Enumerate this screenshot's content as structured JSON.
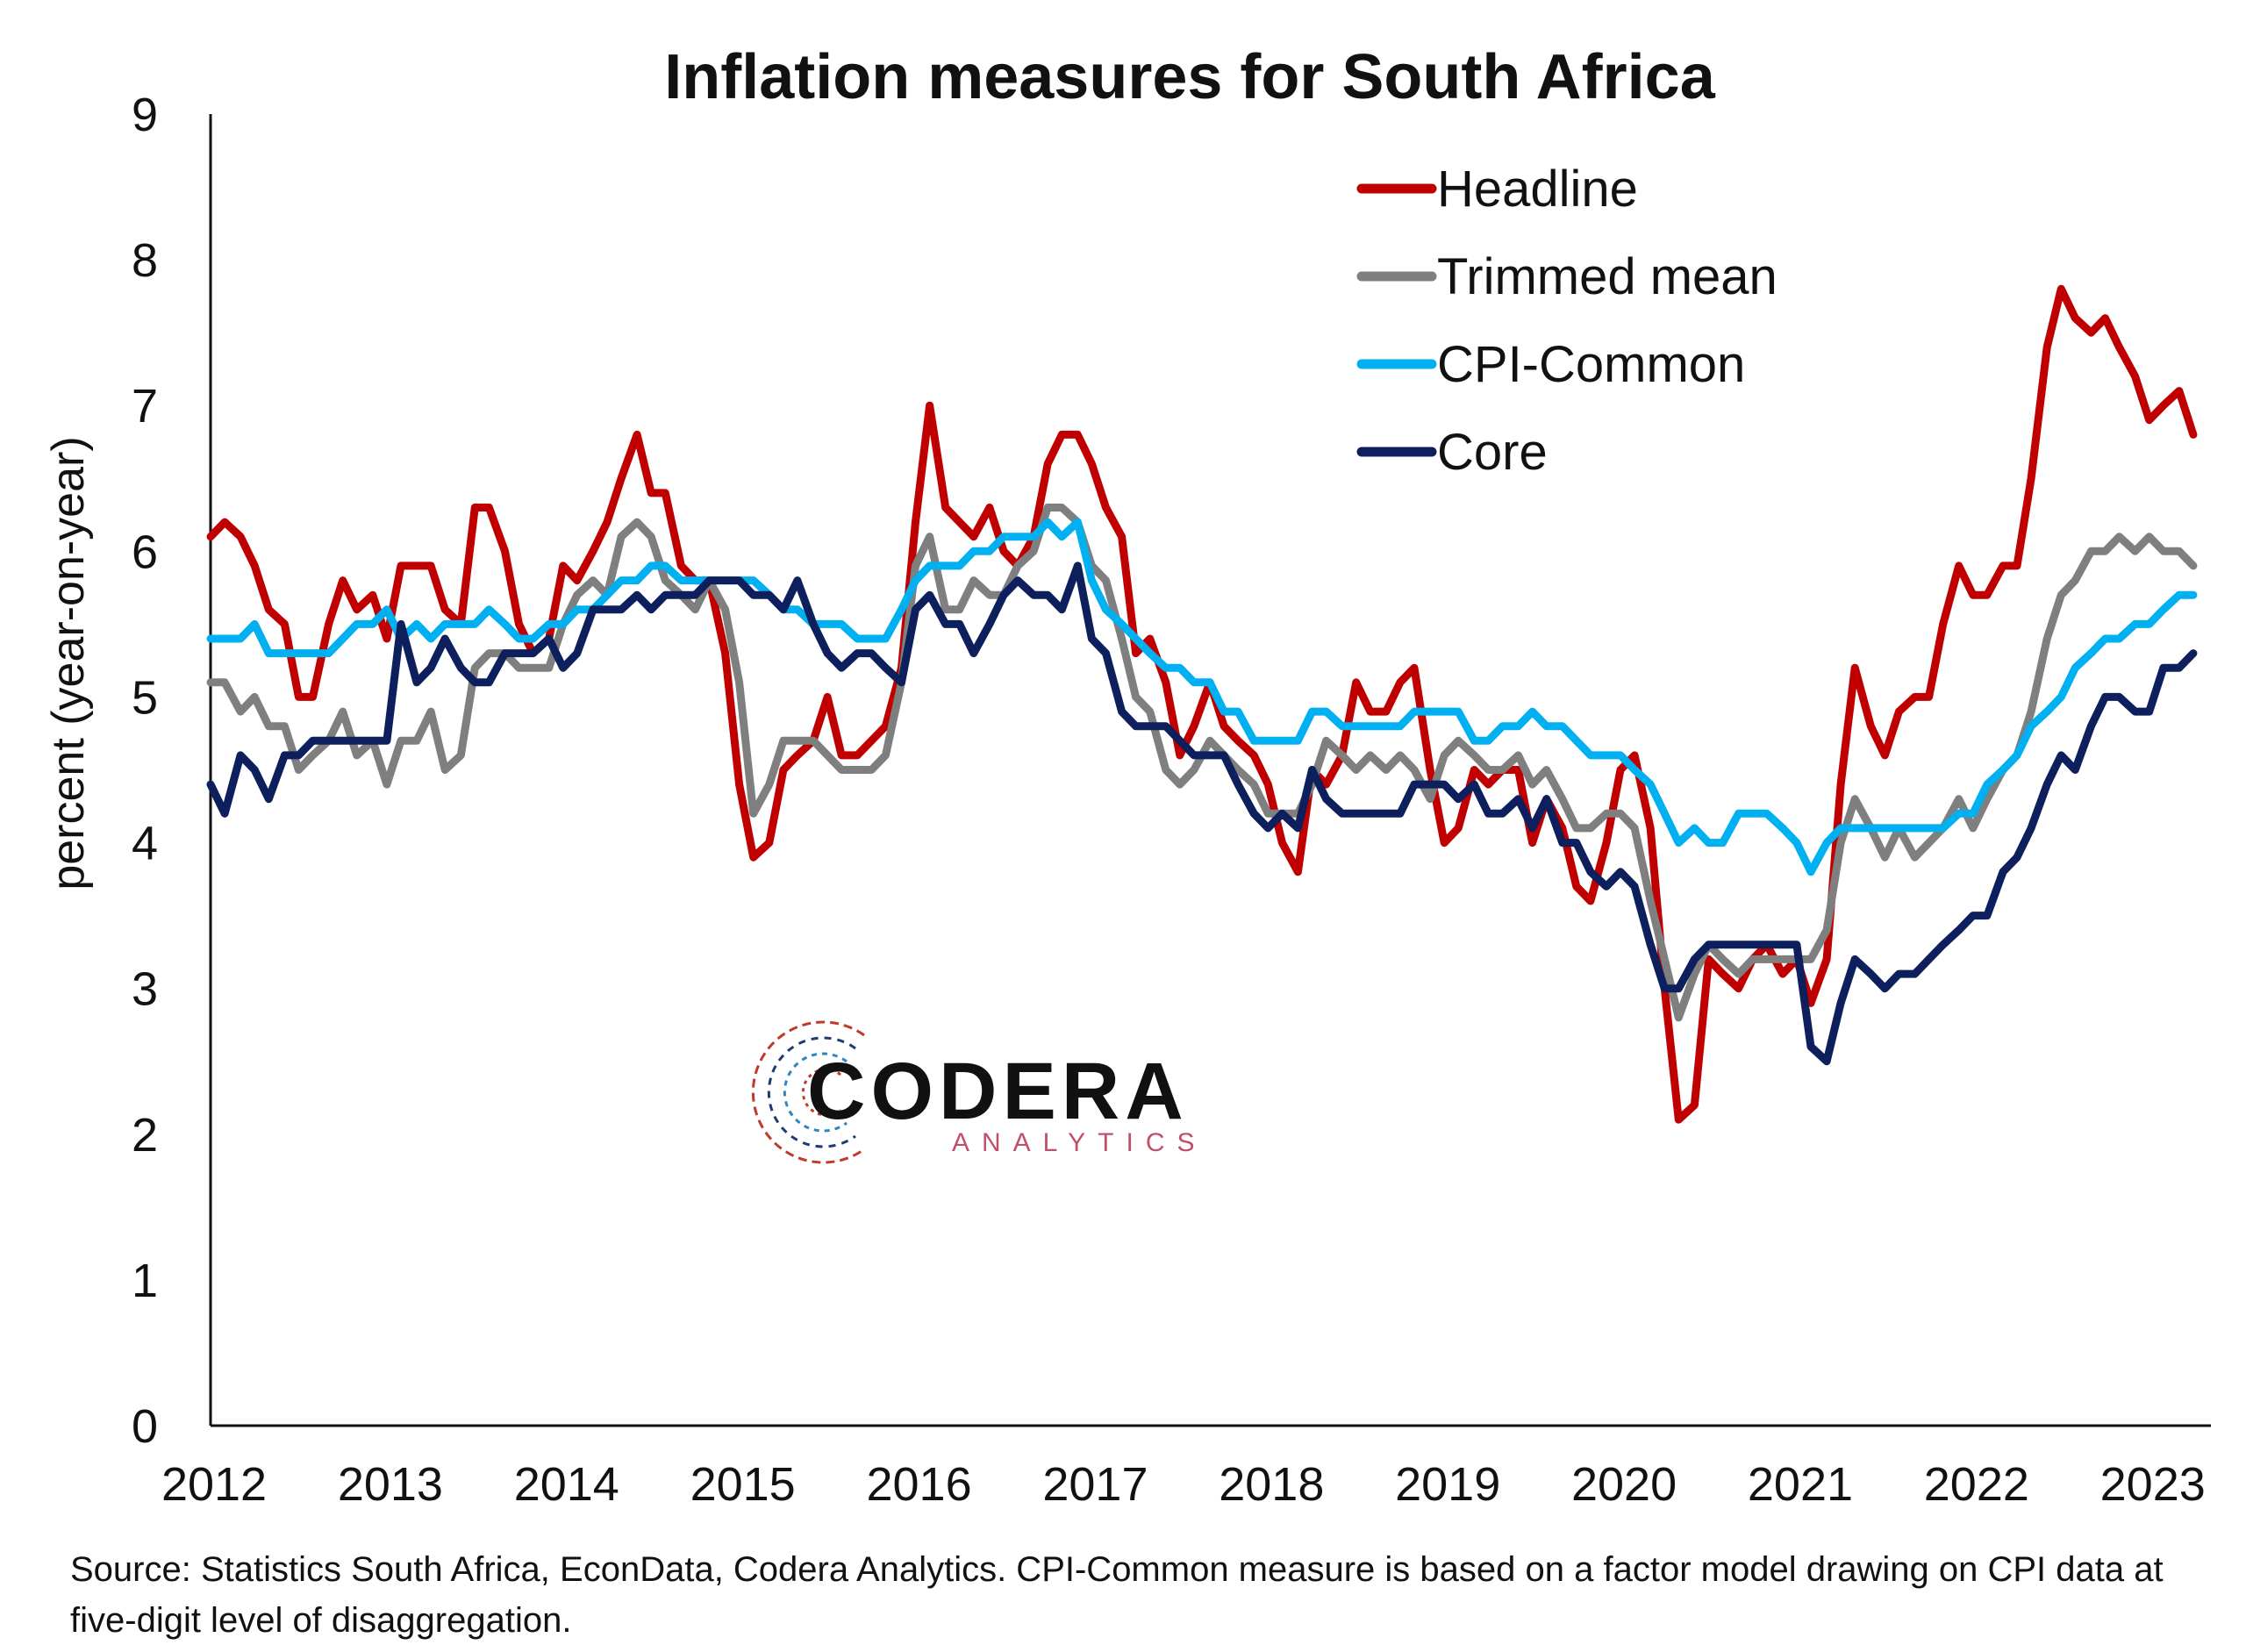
{
  "chart_data": {
    "type": "line",
    "title": "Inflation measures for South Africa",
    "ylabel": "percent (year-on-year)",
    "xlabel": "",
    "ylim": [
      0,
      9
    ],
    "xlim": [
      2012,
      2023.35
    ],
    "yticks": [
      "0",
      "1",
      "2",
      "3",
      "4",
      "5",
      "6",
      "7",
      "8",
      "9"
    ],
    "xticks": [
      "2012",
      "2013",
      "2014",
      "2015",
      "2016",
      "2017",
      "2018",
      "2019",
      "2020",
      "2021",
      "2022",
      "2023"
    ],
    "grid": false,
    "legend_position": "top-right",
    "x": [
      2012.0,
      2012.08,
      2012.17,
      2012.25,
      2012.33,
      2012.42,
      2012.5,
      2012.58,
      2012.67,
      2012.75,
      2012.83,
      2012.92,
      2013.0,
      2013.08,
      2013.17,
      2013.25,
      2013.33,
      2013.42,
      2013.5,
      2013.58,
      2013.67,
      2013.75,
      2013.83,
      2013.92,
      2014.0,
      2014.08,
      2014.17,
      2014.25,
      2014.33,
      2014.42,
      2014.5,
      2014.58,
      2014.67,
      2014.75,
      2014.83,
      2014.92,
      2015.0,
      2015.08,
      2015.17,
      2015.25,
      2015.33,
      2015.42,
      2015.5,
      2015.58,
      2015.67,
      2015.75,
      2015.83,
      2015.92,
      2016.0,
      2016.08,
      2016.17,
      2016.25,
      2016.33,
      2016.42,
      2016.5,
      2016.58,
      2016.67,
      2016.75,
      2016.83,
      2016.92,
      2017.0,
      2017.08,
      2017.17,
      2017.25,
      2017.33,
      2017.42,
      2017.5,
      2017.58,
      2017.67,
      2017.75,
      2017.83,
      2017.92,
      2018.0,
      2018.08,
      2018.17,
      2018.25,
      2018.33,
      2018.42,
      2018.5,
      2018.58,
      2018.67,
      2018.75,
      2018.83,
      2018.92,
      2019.0,
      2019.08,
      2019.17,
      2019.25,
      2019.33,
      2019.42,
      2019.5,
      2019.58,
      2019.67,
      2019.75,
      2019.83,
      2019.92,
      2020.0,
      2020.08,
      2020.17,
      2020.25,
      2020.33,
      2020.42,
      2020.5,
      2020.58,
      2020.67,
      2020.75,
      2020.83,
      2020.92,
      2021.0,
      2021.08,
      2021.17,
      2021.25,
      2021.33,
      2021.42,
      2021.5,
      2021.58,
      2021.67,
      2021.75,
      2021.83,
      2021.92,
      2022.0,
      2022.08,
      2022.17,
      2022.25,
      2022.33,
      2022.42,
      2022.5,
      2022.58,
      2022.67,
      2022.75,
      2022.83,
      2022.92,
      2023.0,
      2023.08,
      2023.17,
      2023.25
    ],
    "series": [
      {
        "name": "Headline",
        "color": "#c00000",
        "values": [
          6.1,
          6.2,
          6.1,
          5.9,
          5.6,
          5.5,
          5.0,
          5.0,
          5.5,
          5.8,
          5.6,
          5.7,
          5.4,
          5.9,
          5.9,
          5.9,
          5.6,
          5.5,
          6.3,
          6.3,
          6.0,
          5.5,
          5.3,
          5.4,
          5.9,
          5.8,
          6.0,
          6.2,
          6.5,
          6.8,
          6.4,
          6.4,
          5.9,
          5.8,
          5.8,
          5.3,
          4.4,
          3.9,
          4.0,
          4.5,
          4.6,
          4.7,
          5.0,
          4.6,
          4.6,
          4.7,
          4.8,
          5.2,
          6.2,
          7.0,
          6.3,
          6.2,
          6.1,
          6.3,
          6.0,
          5.9,
          6.1,
          6.6,
          6.8,
          6.8,
          6.6,
          6.3,
          6.1,
          5.3,
          5.4,
          5.1,
          4.6,
          4.8,
          5.1,
          4.8,
          4.7,
          4.6,
          4.4,
          4.0,
          3.8,
          4.5,
          4.4,
          4.6,
          5.1,
          4.9,
          4.9,
          5.1,
          5.2,
          4.5,
          4.0,
          4.1,
          4.5,
          4.4,
          4.5,
          4.5,
          4.0,
          4.3,
          4.1,
          3.7,
          3.6,
          4.0,
          4.5,
          4.6,
          4.1,
          3.0,
          2.1,
          2.2,
          3.2,
          3.1,
          3.0,
          3.2,
          3.3,
          3.1,
          3.2,
          2.9,
          3.2,
          4.4,
          5.2,
          4.8,
          4.6,
          4.9,
          5.0,
          5.0,
          5.5,
          5.9,
          5.7,
          5.7,
          5.9,
          5.9,
          6.5,
          7.4,
          7.8,
          7.6,
          7.5,
          7.6,
          7.4,
          7.2,
          6.9,
          7.0,
          7.1,
          6.8
        ]
      },
      {
        "name": "Trimmed mean",
        "color": "#7f7f7f",
        "values": [
          5.1,
          5.1,
          4.9,
          5.0,
          4.8,
          4.8,
          4.5,
          4.6,
          4.7,
          4.9,
          4.6,
          4.7,
          4.4,
          4.7,
          4.7,
          4.9,
          4.5,
          4.6,
          5.2,
          5.3,
          5.3,
          5.2,
          5.2,
          5.2,
          5.5,
          5.7,
          5.8,
          5.7,
          6.1,
          6.2,
          6.1,
          5.8,
          5.7,
          5.6,
          5.8,
          5.6,
          5.1,
          4.2,
          4.4,
          4.7,
          4.7,
          4.7,
          4.6,
          4.5,
          4.5,
          4.5,
          4.6,
          5.1,
          5.9,
          6.1,
          5.6,
          5.6,
          5.8,
          5.7,
          5.7,
          5.9,
          6.0,
          6.3,
          6.3,
          6.2,
          5.9,
          5.8,
          5.4,
          5.0,
          4.9,
          4.5,
          4.4,
          4.5,
          4.7,
          4.6,
          4.5,
          4.4,
          4.2,
          4.2,
          4.2,
          4.4,
          4.7,
          4.6,
          4.5,
          4.6,
          4.5,
          4.6,
          4.5,
          4.3,
          4.6,
          4.7,
          4.6,
          4.5,
          4.5,
          4.6,
          4.4,
          4.5,
          4.3,
          4.1,
          4.1,
          4.2,
          4.2,
          4.1,
          3.6,
          3.2,
          2.8,
          3.1,
          3.3,
          3.2,
          3.1,
          3.2,
          3.2,
          3.2,
          3.2,
          3.2,
          3.4,
          4.0,
          4.3,
          4.1,
          3.9,
          4.1,
          3.9,
          4.0,
          4.1,
          4.3,
          4.1,
          4.3,
          4.5,
          4.6,
          4.9,
          5.4,
          5.7,
          5.8,
          6.0,
          6.0,
          6.1,
          6.0,
          6.1,
          6.0,
          6.0,
          5.9
        ]
      },
      {
        "name": "CPI-Common",
        "color": "#00b0f0",
        "values": [
          5.4,
          5.4,
          5.4,
          5.5,
          5.3,
          5.3,
          5.3,
          5.3,
          5.3,
          5.4,
          5.5,
          5.5,
          5.6,
          5.4,
          5.5,
          5.4,
          5.5,
          5.5,
          5.5,
          5.6,
          5.5,
          5.4,
          5.4,
          5.5,
          5.5,
          5.6,
          5.6,
          5.7,
          5.8,
          5.8,
          5.9,
          5.9,
          5.8,
          5.8,
          5.8,
          5.8,
          5.8,
          5.8,
          5.7,
          5.6,
          5.6,
          5.5,
          5.5,
          5.5,
          5.4,
          5.4,
          5.4,
          5.6,
          5.8,
          5.9,
          5.9,
          5.9,
          6.0,
          6.0,
          6.1,
          6.1,
          6.1,
          6.2,
          6.1,
          6.2,
          5.8,
          5.6,
          5.5,
          5.4,
          5.3,
          5.2,
          5.2,
          5.1,
          5.1,
          4.9,
          4.9,
          4.7,
          4.7,
          4.7,
          4.7,
          4.9,
          4.9,
          4.8,
          4.8,
          4.8,
          4.8,
          4.8,
          4.9,
          4.9,
          4.9,
          4.9,
          4.7,
          4.7,
          4.8,
          4.8,
          4.9,
          4.8,
          4.8,
          4.7,
          4.6,
          4.6,
          4.6,
          4.5,
          4.4,
          4.2,
          4.0,
          4.1,
          4.0,
          4.0,
          4.2,
          4.2,
          4.2,
          4.1,
          4.0,
          3.8,
          4.0,
          4.1,
          4.1,
          4.1,
          4.1,
          4.1,
          4.1,
          4.1,
          4.1,
          4.2,
          4.2,
          4.4,
          4.5,
          4.6,
          4.8,
          4.9,
          5.0,
          5.2,
          5.3,
          5.4,
          5.4,
          5.5,
          5.5,
          5.6,
          5.7,
          5.7
        ]
      },
      {
        "name": "Core",
        "color": "#0d1f5c",
        "values": [
          4.4,
          4.2,
          4.6,
          4.5,
          4.3,
          4.6,
          4.6,
          4.7,
          4.7,
          4.7,
          4.7,
          4.7,
          4.7,
          5.5,
          5.1,
          5.2,
          5.4,
          5.2,
          5.1,
          5.1,
          5.3,
          5.3,
          5.3,
          5.4,
          5.2,
          5.3,
          5.6,
          5.6,
          5.6,
          5.7,
          5.6,
          5.7,
          5.7,
          5.7,
          5.8,
          5.8,
          5.8,
          5.7,
          5.7,
          5.6,
          5.8,
          5.5,
          5.3,
          5.2,
          5.3,
          5.3,
          5.2,
          5.1,
          5.6,
          5.7,
          5.5,
          5.5,
          5.3,
          5.5,
          5.7,
          5.8,
          5.7,
          5.7,
          5.6,
          5.9,
          5.4,
          5.3,
          4.9,
          4.8,
          4.8,
          4.8,
          4.7,
          4.6,
          4.6,
          4.6,
          4.4,
          4.2,
          4.1,
          4.2,
          4.1,
          4.5,
          4.3,
          4.2,
          4.2,
          4.2,
          4.2,
          4.2,
          4.4,
          4.4,
          4.4,
          4.3,
          4.4,
          4.2,
          4.2,
          4.3,
          4.1,
          4.3,
          4.0,
          4.0,
          3.8,
          3.7,
          3.8,
          3.7,
          3.3,
          3.0,
          3.0,
          3.2,
          3.3,
          3.3,
          3.3,
          3.3,
          3.3,
          3.3,
          3.3,
          2.6,
          2.5,
          2.9,
          3.2,
          3.1,
          3.0,
          3.1,
          3.1,
          3.2,
          3.3,
          3.4,
          3.5,
          3.5,
          3.8,
          3.9,
          4.1,
          4.4,
          4.6,
          4.5,
          4.8,
          5.0,
          5.0,
          4.9,
          4.9,
          5.2,
          5.2,
          5.3
        ]
      }
    ]
  },
  "logo": {
    "name": "CODERA",
    "sub": "ANALYTICS"
  },
  "source_note": "Source: Statistics South Africa, EconData, Codera Analytics. CPI-Common measure is based on a factor model drawing on CPI data at five-digit level of disaggregation."
}
